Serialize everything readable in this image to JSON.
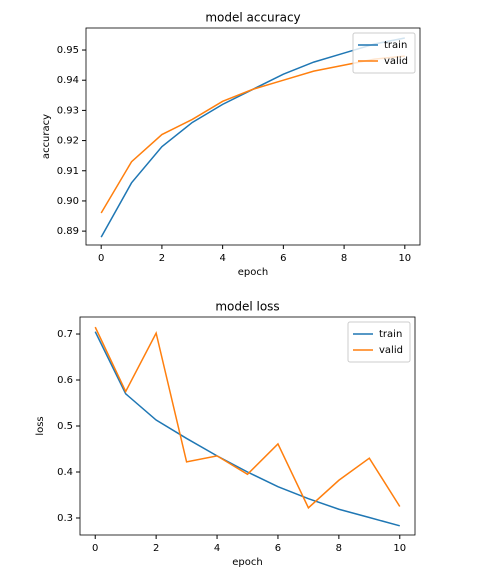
{
  "chart_data": [
    {
      "type": "line",
      "title": "model accuracy",
      "xlabel": "epoch",
      "ylabel": "accuracy",
      "x": [
        0,
        1,
        2,
        3,
        4,
        5,
        6,
        7,
        8,
        9,
        10
      ],
      "series": [
        {
          "name": "train",
          "color": "#1f77b4",
          "values": [
            0.888,
            0.906,
            0.918,
            0.926,
            0.932,
            0.937,
            0.942,
            0.946,
            0.949,
            0.952,
            0.954
          ]
        },
        {
          "name": "valid",
          "color": "#ff7f0e",
          "values": [
            0.896,
            0.913,
            0.922,
            0.927,
            0.933,
            0.937,
            0.94,
            0.943,
            0.945,
            0.947,
            0.948
          ]
        }
      ],
      "xlim": [
        -0.5,
        10.5
      ],
      "xticks": [
        0,
        2,
        4,
        6,
        8,
        10
      ],
      "ylim": [
        0.8854,
        0.9573
      ],
      "yticks": [
        0.89,
        {
          "value": 0.9,
          "label": "0.90"
        },
        0.91,
        0.92,
        0.93,
        0.94,
        0.95
      ],
      "legend": "upper right"
    },
    {
      "type": "line",
      "title": "model loss",
      "xlabel": "epoch",
      "ylabel": "loss",
      "x": [
        0,
        1,
        2,
        3,
        4,
        5,
        6,
        7,
        8,
        9,
        10
      ],
      "series": [
        {
          "name": "train",
          "color": "#1f77b4",
          "values": [
            0.705,
            0.57,
            0.513,
            0.473,
            0.435,
            0.4,
            0.368,
            0.342,
            0.319,
            0.301,
            0.283
          ]
        },
        {
          "name": "valid",
          "color": "#ff7f0e",
          "values": [
            0.715,
            0.575,
            0.702,
            0.422,
            0.435,
            0.395,
            0.461,
            0.322,
            0.382,
            0.43,
            0.325
          ]
        }
      ],
      "xlim": [
        -0.5,
        10.5
      ],
      "xticks": [
        0,
        2,
        4,
        6,
        8,
        10
      ],
      "ylim": [
        0.263,
        0.737
      ],
      "yticks": [
        0.3,
        0.4,
        0.5,
        0.6,
        0.7
      ],
      "legend": "upper right"
    }
  ]
}
